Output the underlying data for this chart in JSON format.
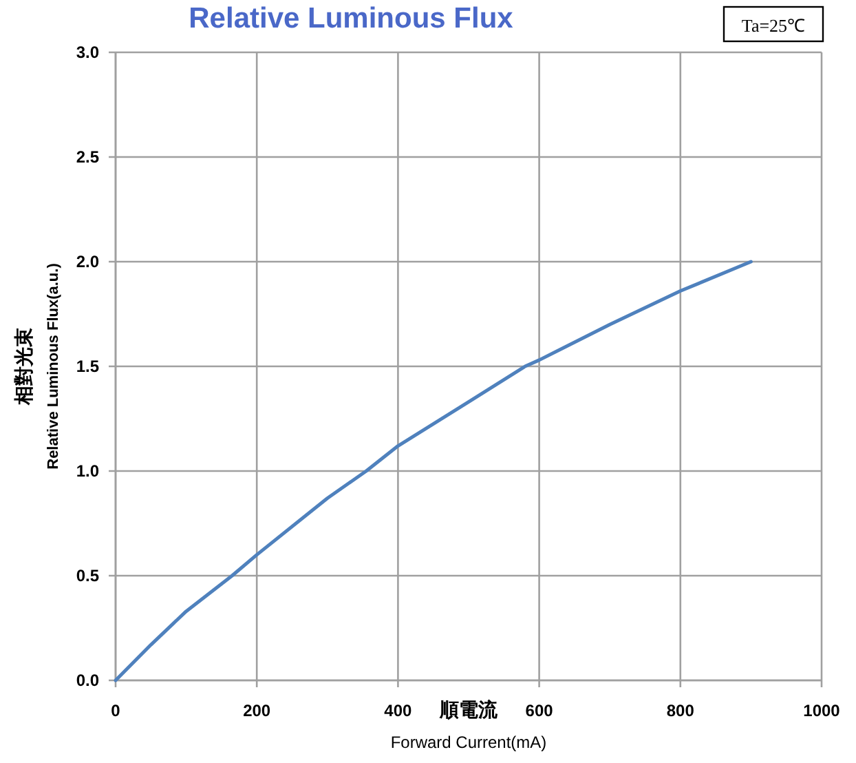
{
  "chart_data": {
    "type": "line",
    "title": "Relative Luminous Flux",
    "xlabel": "順電流\nForward Current(mA)",
    "ylabel": "相對光束\nRelative Luminous Flux(a.u.)",
    "x": [
      0,
      50,
      100,
      165,
      200,
      300,
      355,
      400,
      500,
      580,
      600,
      700,
      800,
      900
    ],
    "series": [
      {
        "color": "#4f81bd",
        "values": [
          0,
          0.17,
          0.33,
          0.5,
          0.6,
          0.87,
          1.0,
          1.12,
          1.33,
          1.5,
          1.53,
          1.7,
          1.86,
          2.0
        ]
      }
    ],
    "xlim": [
      0,
      1000
    ],
    "xticks": [
      0,
      200,
      400,
      600,
      800,
      1000
    ],
    "ylim": [
      0,
      3
    ],
    "yticks": [
      {
        "value": 0,
        "label": "0.0"
      },
      {
        "value": 0.5,
        "label": "0.5"
      },
      {
        "value": 1,
        "label": "1.0"
      },
      {
        "value": 1.5,
        "label": "1.5"
      },
      {
        "value": 2,
        "label": "2.0"
      },
      {
        "value": 2.5,
        "label": "2.5"
      },
      {
        "value": 3,
        "label": "3.0"
      }
    ],
    "grid": true,
    "marker": "none",
    "line_style": "solid",
    "annotations": [
      "Ta=25℃"
    ]
  }
}
